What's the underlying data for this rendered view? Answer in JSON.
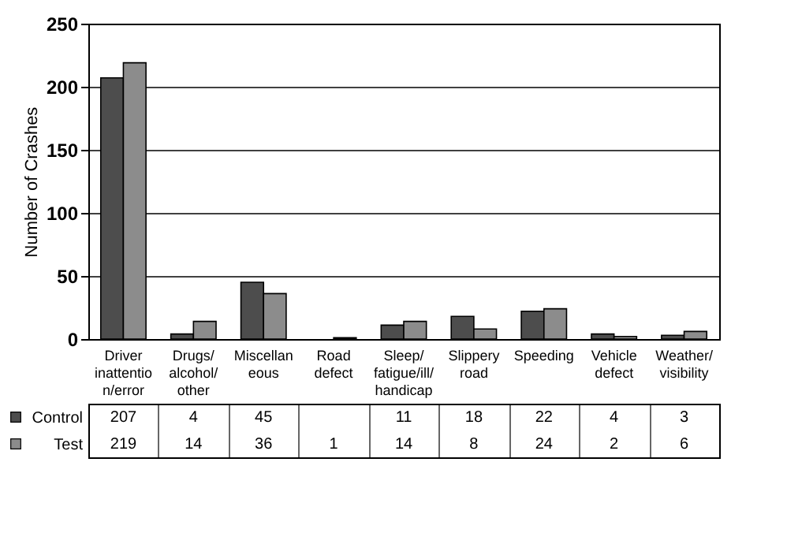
{
  "chart_data": {
    "type": "bar",
    "ylabel": "Number of Crashes",
    "categories": [
      "Driver\ninattentio\nn/error",
      "Drugs/\nalcohol/\nother",
      "Miscellan\neous",
      "Road\ndefect",
      "Sleep/\nfatigue/ill/\nhandicap",
      "Slippery\nroad",
      "Speeding",
      "Vehicle\ndefect",
      "Weather/\nvisibility"
    ],
    "series": [
      {
        "name": "Control",
        "color": "#4d4d4d",
        "values": [
          207,
          4,
          45,
          null,
          11,
          18,
          22,
          4,
          3
        ]
      },
      {
        "name": "Test",
        "color": "#8c8c8c",
        "values": [
          219,
          14,
          36,
          1,
          14,
          8,
          24,
          2,
          6
        ]
      }
    ],
    "ylim": [
      0,
      250
    ],
    "yticks": [
      0,
      50,
      100,
      150,
      200,
      250
    ],
    "grid": "y",
    "legend": "bottom",
    "data_labels": true
  }
}
